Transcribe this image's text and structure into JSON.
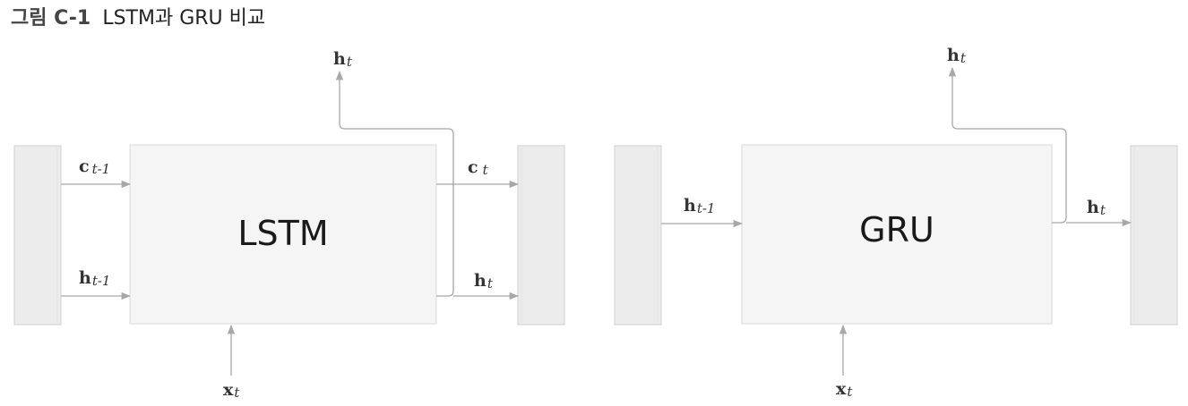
{
  "figure": {
    "number": "그림 C-1",
    "title": "LSTM과 GRU 비교"
  },
  "lstm": {
    "name": "LSTM",
    "inputs": {
      "cell_prev": {
        "base": "c",
        "sub": "t-1"
      },
      "hidden_prev": {
        "base": "h",
        "sub": "t-1"
      },
      "x": {
        "base": "x",
        "sub": "t"
      }
    },
    "outputs": {
      "cell": {
        "base": "c",
        "sub": "t"
      },
      "hidden": {
        "base": "h",
        "sub": "t"
      },
      "hidden_up": {
        "base": "h",
        "sub": "t"
      }
    }
  },
  "gru": {
    "name": "GRU",
    "inputs": {
      "hidden_prev": {
        "base": "h",
        "sub": "t-1"
      },
      "x": {
        "base": "x",
        "sub": "t"
      }
    },
    "outputs": {
      "hidden": {
        "base": "h",
        "sub": "t"
      },
      "hidden_up": {
        "base": "h",
        "sub": "t"
      }
    }
  },
  "colors": {
    "box_fill": "#f4f5f4",
    "neighbor_fill": "#ececec",
    "wire": "#a8a8a8",
    "text": "#1a1a1a"
  }
}
